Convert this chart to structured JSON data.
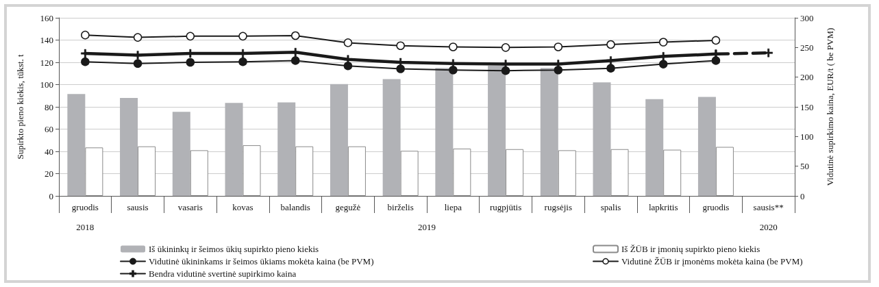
{
  "chart_data": {
    "type": "bar",
    "categories": [
      "gruodis",
      "sausis",
      "vasaris",
      "kovas",
      "balandis",
      "gegužė",
      "birželis",
      "liepa",
      "rugpjūtis",
      "rugsėjis",
      "spalis",
      "lapkritis",
      "gruodis",
      "sausis**"
    ],
    "series": [
      {
        "name": "Iš ūkininkų ir šeimos ūkių supirkto pieno kiekis",
        "color": "#b1b2b6",
        "values": [
          91.5,
          88,
          75.5,
          83.5,
          84,
          100.5,
          105,
          115,
          117,
          115,
          102,
          87,
          89,
          null
        ]
      },
      {
        "name": "Iš ŽŪB ir įmonių supirkto pieno kiekis",
        "color": "#ffffff",
        "values": [
          43.5,
          44.5,
          41,
          45.5,
          44.5,
          44.5,
          40.5,
          42.5,
          42,
          41,
          42,
          41.5,
          44,
          null
        ]
      },
      {
        "name": "Vidutinė ūkininkams ir šeimos ūkiams mokėta kaina (be PVM)",
        "type": "line",
        "axis": "y2",
        "marker": "circle",
        "color": "#1a1a1a",
        "values": [
          226,
          223,
          225,
          226,
          228,
          219,
          214,
          212,
          211,
          212,
          215,
          222,
          228,
          null
        ]
      },
      {
        "name": "Vidutinė ŽŪB ir įmonėms mokėta kaina (be PVM)",
        "type": "line",
        "axis": "y2",
        "marker": "circle",
        "color": "#1a1a1a",
        "colors": [
          "#ffffff",
          "#ffffff",
          "#ffffff",
          "#ffffff",
          "#ffffff",
          "#ffffff",
          "#ffffff",
          "#ffffff",
          "#ffffff",
          "#ffffff",
          "#ffffff",
          "#ffffff",
          "#ffffff",
          "#ffffff"
        ],
        "values": [
          271,
          267,
          269,
          269,
          270,
          258,
          253,
          251,
          250,
          251,
          255,
          259,
          262,
          null
        ]
      },
      {
        "name": "Bendra vidutinė svertinė supirkimo kaina",
        "type": "line",
        "axis": "y2",
        "marker": "cross",
        "color": "#1a1a1a",
        "values": [
          240,
          237,
          240,
          240,
          242,
          230,
          225,
          223,
          222,
          222,
          228,
          235,
          239,
          null
        ]
      },
      {
        "type": "line",
        "axis": "y2",
        "marker": "cross",
        "line_style": "dashed",
        "color": "#1a1a1a",
        "values": [
          null,
          null,
          null,
          null,
          null,
          null,
          null,
          null,
          null,
          null,
          null,
          null,
          239,
          241
        ]
      }
    ],
    "ylabel": "Supirkto pieno kiekis, tūkst. t",
    "y2label": "Vidutinė supirkimo kaina, EUR/t ( be PVM)",
    "ylim": [
      0,
      160
    ],
    "yticks": [
      0,
      20,
      40,
      60,
      80,
      100,
      120,
      140,
      160
    ],
    "y2lim": [
      0,
      300
    ],
    "y2ticks": [
      0,
      50,
      100,
      150,
      200,
      250,
      300
    ],
    "annotations": [
      "2018",
      "2019",
      "2020"
    ],
    "grid": "y",
    "legend": "bottom"
  }
}
